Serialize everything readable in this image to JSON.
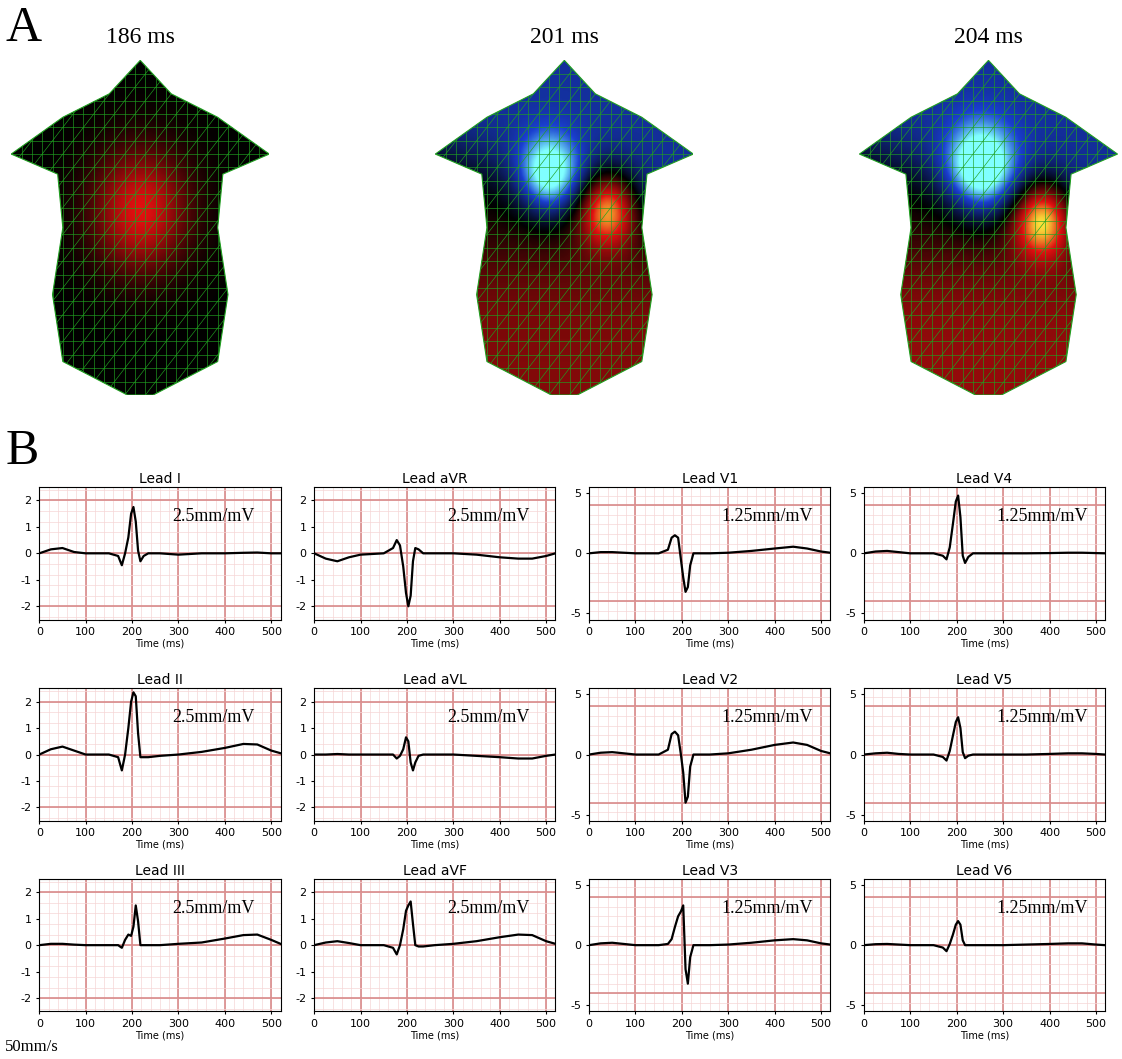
{
  "panel_A": {
    "label": "A",
    "maps": [
      {
        "title": "186 ms"
      },
      {
        "title": "201 ms"
      },
      {
        "title": "204 ms"
      }
    ]
  },
  "panel_B": {
    "label": "B",
    "paper_speed_label": "50mm/s",
    "mm_per_s": 50
  },
  "chart_data": [
    {
      "type": "line",
      "title": "Lead I",
      "x_label": "Time (ms)",
      "annotation": "2.5mm/mV",
      "mm_per_mV": 2.5,
      "color": "#000000",
      "grid": true,
      "x": [
        0,
        25,
        50,
        75,
        100,
        150,
        170,
        178,
        185,
        192,
        198,
        203,
        208,
        213,
        218,
        225,
        235,
        260,
        300,
        350,
        400,
        440,
        470,
        500,
        520
      ],
      "values": [
        0,
        0.15,
        0.2,
        0.05,
        0,
        0,
        -0.1,
        -0.45,
        0,
        0.6,
        1.5,
        1.75,
        1.2,
        0.1,
        -0.3,
        -0.1,
        0,
        0,
        -0.05,
        0,
        0,
        0.02,
        0.03,
        0,
        0
      ],
      "xlim": [
        0,
        520
      ],
      "ylim": [
        -2.5,
        2.5
      ],
      "xticks": [
        0,
        100,
        200,
        300,
        400,
        500
      ],
      "yticks": [
        -2,
        -1,
        0,
        1,
        2
      ]
    },
    {
      "type": "line",
      "title": "Lead II",
      "x_label": "Time (ms)",
      "annotation": "2.5mm/mV",
      "mm_per_mV": 2.5,
      "color": "#000000",
      "grid": true,
      "x": [
        0,
        25,
        50,
        75,
        100,
        150,
        170,
        178,
        185,
        192,
        198,
        203,
        208,
        213,
        218,
        225,
        235,
        260,
        300,
        350,
        400,
        440,
        470,
        500,
        520
      ],
      "values": [
        0,
        0.2,
        0.3,
        0.15,
        0,
        0,
        -0.1,
        -0.6,
        0,
        1.0,
        2.0,
        2.35,
        2.2,
        0.8,
        -0.1,
        -0.1,
        -0.1,
        -0.05,
        0,
        0.1,
        0.25,
        0.4,
        0.38,
        0.15,
        0.05
      ],
      "xlim": [
        0,
        520
      ],
      "ylim": [
        -2.5,
        2.5
      ],
      "xticks": [
        0,
        100,
        200,
        300,
        400,
        500
      ],
      "yticks": [
        -2,
        -1,
        0,
        1,
        2
      ]
    },
    {
      "type": "line",
      "title": "Lead III",
      "x_label": "Time (ms)",
      "annotation": "2.5mm/mV",
      "mm_per_mV": 2.5,
      "color": "#000000",
      "grid": true,
      "x": [
        0,
        25,
        50,
        75,
        100,
        150,
        170,
        178,
        185,
        192,
        198,
        203,
        208,
        213,
        218,
        225,
        235,
        260,
        300,
        350,
        400,
        440,
        470,
        500,
        520
      ],
      "values": [
        0,
        0.05,
        0.05,
        0.02,
        0,
        0,
        0,
        -0.1,
        0.2,
        0.4,
        0.35,
        0.7,
        1.5,
        0.9,
        0,
        0,
        0,
        0,
        0.05,
        0.1,
        0.25,
        0.38,
        0.4,
        0.2,
        0.05
      ],
      "xlim": [
        0,
        520
      ],
      "ylim": [
        -2.5,
        2.5
      ],
      "xticks": [
        0,
        100,
        200,
        300,
        400,
        500
      ],
      "yticks": [
        -2,
        -1,
        0,
        1,
        2
      ]
    },
    {
      "type": "line",
      "title": "Lead aVR",
      "x_label": "Time (ms)",
      "annotation": "2.5mm/mV",
      "mm_per_mV": 2.5,
      "color": "#000000",
      "grid": true,
      "x": [
        0,
        25,
        50,
        75,
        100,
        150,
        170,
        178,
        185,
        192,
        198,
        203,
        208,
        213,
        218,
        225,
        235,
        260,
        300,
        350,
        400,
        440,
        470,
        500,
        520
      ],
      "values": [
        0,
        -0.2,
        -0.3,
        -0.15,
        -0.05,
        0,
        0.2,
        0.5,
        0.3,
        -0.5,
        -1.5,
        -2.0,
        -1.6,
        -0.3,
        0.2,
        0.15,
        0,
        0,
        0,
        -0.05,
        -0.15,
        -0.2,
        -0.2,
        -0.1,
        0
      ],
      "xlim": [
        0,
        520
      ],
      "ylim": [
        -2.5,
        2.5
      ],
      "xticks": [
        0,
        100,
        200,
        300,
        400,
        500
      ],
      "yticks": [
        -2,
        -1,
        0,
        1,
        2
      ]
    },
    {
      "type": "line",
      "title": "Lead aVL",
      "x_label": "Time (ms)",
      "annotation": "2.5mm/mV",
      "mm_per_mV": 2.5,
      "color": "#000000",
      "grid": true,
      "x": [
        0,
        25,
        50,
        75,
        100,
        150,
        170,
        178,
        185,
        192,
        198,
        203,
        208,
        213,
        218,
        225,
        235,
        260,
        300,
        350,
        400,
        440,
        470,
        500,
        520
      ],
      "values": [
        0,
        0,
        0.02,
        0,
        0,
        0,
        0,
        -0.15,
        -0.05,
        0.2,
        0.65,
        0.5,
        -0.3,
        -0.6,
        -0.3,
        -0.05,
        0,
        0,
        0,
        -0.05,
        -0.1,
        -0.15,
        -0.15,
        -0.05,
        0
      ],
      "xlim": [
        0,
        520
      ],
      "ylim": [
        -2.5,
        2.5
      ],
      "xticks": [
        0,
        100,
        200,
        300,
        400,
        500
      ],
      "yticks": [
        -2,
        -1,
        0,
        1,
        2
      ]
    },
    {
      "type": "line",
      "title": "Lead aVF",
      "x_label": "Time (ms)",
      "annotation": "2.5mm/mV",
      "mm_per_mV": 2.5,
      "color": "#000000",
      "grid": true,
      "x": [
        0,
        25,
        50,
        75,
        100,
        150,
        170,
        178,
        185,
        192,
        198,
        203,
        208,
        213,
        218,
        225,
        235,
        260,
        300,
        350,
        400,
        440,
        470,
        500,
        520
      ],
      "values": [
        0,
        0.1,
        0.15,
        0.08,
        0,
        0,
        -0.1,
        -0.35,
        0,
        0.6,
        1.3,
        1.5,
        1.65,
        0.8,
        0,
        -0.05,
        -0.05,
        0,
        0.05,
        0.15,
        0.3,
        0.4,
        0.38,
        0.15,
        0.05
      ],
      "xlim": [
        0,
        520
      ],
      "ylim": [
        -2.5,
        2.5
      ],
      "xticks": [
        0,
        100,
        200,
        300,
        400,
        500
      ],
      "yticks": [
        -2,
        -1,
        0,
        1,
        2
      ]
    },
    {
      "type": "line",
      "title": "Lead V1",
      "x_label": "Time (ms)",
      "annotation": "1.25mm/mV",
      "mm_per_mV": 1.25,
      "color": "#000000",
      "grid": true,
      "x": [
        0,
        25,
        50,
        75,
        100,
        150,
        170,
        178,
        185,
        192,
        198,
        203,
        208,
        213,
        218,
        225,
        235,
        260,
        300,
        350,
        400,
        440,
        470,
        500,
        520
      ],
      "values": [
        0,
        0.1,
        0.1,
        0.05,
        0,
        0,
        0.3,
        1.3,
        1.5,
        1.3,
        -0.5,
        -2.0,
        -3.2,
        -2.8,
        -1.0,
        0,
        0,
        0,
        0.05,
        0.2,
        0.4,
        0.55,
        0.4,
        0.15,
        0.05
      ],
      "xlim": [
        0,
        520
      ],
      "ylim": [
        -5.5,
        5.5
      ],
      "xticks": [
        0,
        100,
        200,
        300,
        400,
        500
      ],
      "yticks": [
        -5,
        0,
        5
      ]
    },
    {
      "type": "line",
      "title": "Lead V2",
      "x_label": "Time (ms)",
      "annotation": "1.25mm/mV",
      "mm_per_mV": 1.25,
      "color": "#000000",
      "grid": true,
      "x": [
        0,
        25,
        50,
        75,
        100,
        150,
        170,
        178,
        185,
        192,
        198,
        203,
        208,
        213,
        218,
        225,
        235,
        260,
        300,
        350,
        400,
        440,
        470,
        500,
        520
      ],
      "values": [
        0,
        0.15,
        0.2,
        0.1,
        0,
        0,
        0.4,
        1.7,
        1.9,
        1.6,
        0,
        -1.5,
        -4.0,
        -3.5,
        -1.0,
        0,
        0,
        0,
        0.1,
        0.4,
        0.8,
        1.0,
        0.8,
        0.3,
        0.1
      ],
      "xlim": [
        0,
        520
      ],
      "ylim": [
        -5.5,
        5.5
      ],
      "xticks": [
        0,
        100,
        200,
        300,
        400,
        500
      ],
      "yticks": [
        -5,
        0,
        5
      ]
    },
    {
      "type": "line",
      "title": "Lead V3",
      "x_label": "Time (ms)",
      "annotation": "1.25mm/mV",
      "mm_per_mV": 1.25,
      "color": "#000000",
      "grid": true,
      "x": [
        0,
        25,
        50,
        75,
        100,
        150,
        170,
        178,
        185,
        192,
        198,
        203,
        208,
        213,
        218,
        225,
        235,
        260,
        300,
        350,
        400,
        440,
        470,
        500,
        520
      ],
      "values": [
        0,
        0.15,
        0.2,
        0.1,
        0,
        0,
        0.1,
        0.5,
        1.5,
        2.4,
        2.8,
        3.3,
        -2.0,
        -3.2,
        -1.0,
        0,
        0,
        0,
        0.05,
        0.2,
        0.4,
        0.5,
        0.4,
        0.15,
        0.05
      ],
      "xlim": [
        0,
        520
      ],
      "ylim": [
        -5.5,
        5.5
      ],
      "xticks": [
        0,
        100,
        200,
        300,
        400,
        500
      ],
      "yticks": [
        -5,
        0,
        5
      ]
    },
    {
      "type": "line",
      "title": "Lead V4",
      "x_label": "Time (ms)",
      "annotation": "1.25mm/mV",
      "mm_per_mV": 1.25,
      "color": "#000000",
      "grid": true,
      "x": [
        0,
        25,
        50,
        75,
        100,
        150,
        170,
        178,
        185,
        192,
        198,
        203,
        208,
        213,
        218,
        225,
        235,
        260,
        300,
        350,
        400,
        440,
        470,
        500,
        520
      ],
      "values": [
        0,
        0.15,
        0.2,
        0.1,
        0,
        0,
        -0.2,
        -0.5,
        0.5,
        2.5,
        4.3,
        4.8,
        3.0,
        -0.2,
        -0.8,
        -0.3,
        0,
        0,
        0,
        0,
        0.02,
        0.05,
        0.05,
        0.02,
        0
      ],
      "xlim": [
        0,
        520
      ],
      "ylim": [
        -5.5,
        5.5
      ],
      "xticks": [
        0,
        100,
        200,
        300,
        400,
        500
      ],
      "yticks": [
        -5,
        0,
        5
      ]
    },
    {
      "type": "line",
      "title": "Lead V5",
      "x_label": "Time (ms)",
      "annotation": "1.25mm/mV",
      "mm_per_mV": 1.25,
      "color": "#000000",
      "grid": true,
      "x": [
        0,
        25,
        50,
        75,
        100,
        150,
        170,
        178,
        185,
        192,
        198,
        203,
        208,
        213,
        218,
        225,
        235,
        260,
        300,
        350,
        400,
        440,
        470,
        500,
        520
      ],
      "values": [
        0,
        0.1,
        0.15,
        0.05,
        0,
        0,
        -0.2,
        -0.5,
        0.3,
        1.6,
        2.7,
        3.1,
        2.2,
        0.2,
        -0.3,
        -0.1,
        0,
        0,
        0,
        0,
        0.05,
        0.1,
        0.1,
        0.05,
        0
      ],
      "xlim": [
        0,
        520
      ],
      "ylim": [
        -5.5,
        5.5
      ],
      "xticks": [
        0,
        100,
        200,
        300,
        400,
        500
      ],
      "yticks": [
        -5,
        0,
        5
      ]
    },
    {
      "type": "line",
      "title": "Lead V6",
      "x_label": "Time (ms)",
      "annotation": "1.25mm/mV",
      "mm_per_mV": 1.25,
      "color": "#000000",
      "grid": true,
      "x": [
        0,
        25,
        50,
        75,
        100,
        150,
        170,
        178,
        185,
        192,
        198,
        203,
        208,
        213,
        218,
        225,
        235,
        260,
        300,
        350,
        400,
        440,
        470,
        500,
        520
      ],
      "values": [
        0,
        0.08,
        0.1,
        0.05,
        0,
        0,
        -0.2,
        -0.5,
        0.1,
        0.9,
        1.7,
        2.0,
        1.7,
        0.4,
        0,
        0,
        0,
        0,
        0,
        0.05,
        0.1,
        0.15,
        0.15,
        0.05,
        0
      ],
      "xlim": [
        0,
        520
      ],
      "ylim": [
        -5.5,
        5.5
      ],
      "xticks": [
        0,
        100,
        200,
        300,
        400,
        500
      ],
      "yticks": [
        -5,
        0,
        5
      ]
    }
  ]
}
